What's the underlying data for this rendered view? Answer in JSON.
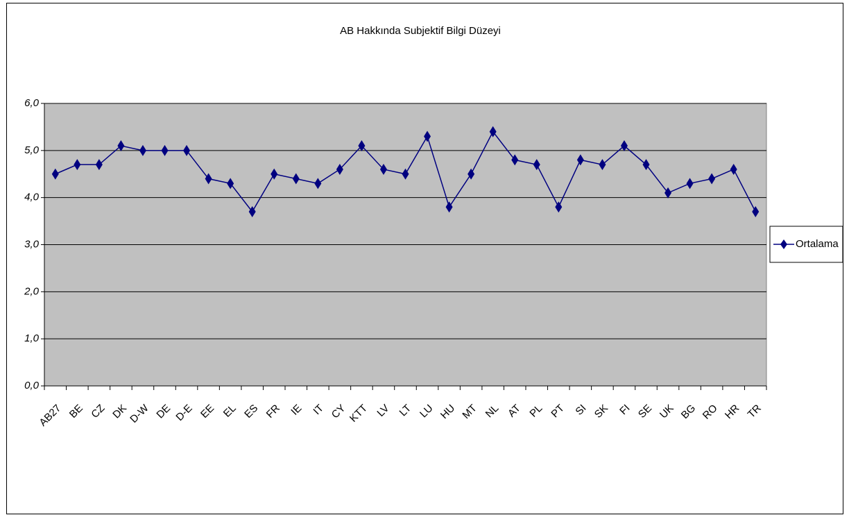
{
  "chart_data": {
    "type": "line",
    "title": "AB Hakkında Subjektif Bilgi Düzeyi",
    "categories": [
      "AB27",
      "BE",
      "CZ",
      "DK",
      "D-W",
      "DE",
      "D-E",
      "EE",
      "EL",
      "ES",
      "FR",
      "IE",
      "IT",
      "CY",
      "KTT",
      "LV",
      "LT",
      "LU",
      "HU",
      "MT",
      "NL",
      "AT",
      "PL",
      "PT",
      "SI",
      "SK",
      "FI",
      "SE",
      "UK",
      "BG",
      "RO",
      "HR",
      "TR"
    ],
    "series": [
      {
        "name": "Ortalama",
        "color": "#000080",
        "values": [
          4.5,
          4.7,
          4.7,
          5.1,
          5.0,
          5.0,
          5.0,
          4.4,
          4.3,
          3.7,
          4.5,
          4.4,
          4.3,
          4.6,
          5.1,
          4.6,
          4.5,
          5.3,
          3.8,
          4.5,
          5.4,
          4.8,
          4.7,
          3.8,
          4.8,
          4.7,
          5.1,
          4.7,
          4.1,
          4.3,
          4.4,
          4.6,
          3.7
        ]
      }
    ],
    "ylim": [
      0,
      6
    ],
    "yticks": [
      {
        "value": 0,
        "label": "0,0"
      },
      {
        "value": 1,
        "label": "1,0"
      },
      {
        "value": 2,
        "label": "2,0"
      },
      {
        "value": 3,
        "label": "3,0"
      },
      {
        "value": 4,
        "label": "4,0"
      },
      {
        "value": 5,
        "label": "5,0"
      },
      {
        "value": 6,
        "label": "6,0"
      }
    ],
    "grid": true,
    "plot_background": "#c0c0c0",
    "legend": "right"
  }
}
